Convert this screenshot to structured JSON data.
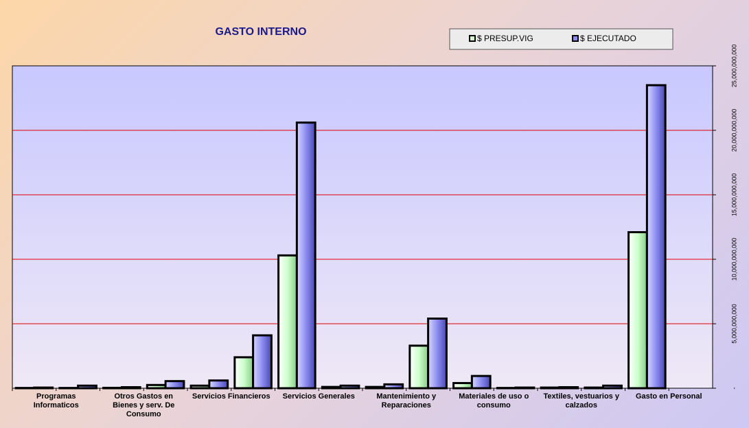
{
  "chart_data": {
    "type": "bar",
    "title": "GASTO INTERNO",
    "categories": [
      "Programas Informaticos",
      null,
      "Otros Gastos en Bienes y serv. De Consumo",
      null,
      "Servicios Financieros",
      null,
      "Servicios Generales",
      null,
      "Mantenimiento y Reparaciones",
      null,
      "Materiales de uso o consumo",
      null,
      "Textiles, vestuarios y calzados",
      null,
      "Gasto en Personal",
      null
    ],
    "series": [
      {
        "name": "$ PRESUP.VIG",
        "color": "#ccffcc",
        "values": [
          20000000,
          20000000,
          30000000,
          250000000,
          200000000,
          2400000000,
          10300000000,
          100000000,
          100000000,
          3300000000,
          400000000,
          20000000,
          50000000,
          50000000,
          12100000000,
          0
        ]
      },
      {
        "name": "$ EJECUTADO",
        "color": "#8c8cf0",
        "values": [
          50000000,
          200000000,
          80000000,
          550000000,
          600000000,
          4100000000,
          20600000000,
          200000000,
          300000000,
          5400000000,
          950000000,
          50000000,
          80000000,
          200000000,
          23500000000,
          0
        ]
      }
    ],
    "ylim": [
      0,
      25000000000
    ],
    "yticks": [
      {
        "value": 0,
        "label": "-"
      },
      {
        "value": 5000000000,
        "label": "5,000,000,000"
      },
      {
        "value": 10000000000,
        "label": "10,000,000,000"
      },
      {
        "value": 15000000000,
        "label": "15,000,000,000"
      },
      {
        "value": 20000000000,
        "label": "20,000,000,000"
      },
      {
        "value": 25000000000,
        "label": "25,000,000,000"
      }
    ],
    "grid": true,
    "grid_color": "#e00000",
    "legend": "top-right"
  }
}
